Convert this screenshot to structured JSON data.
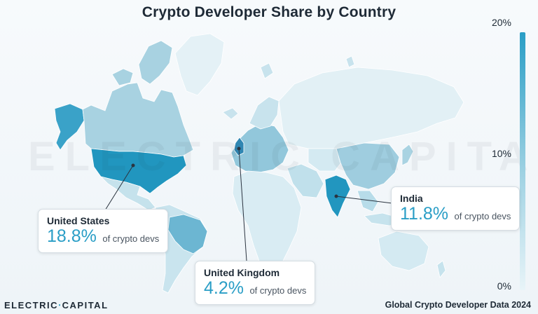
{
  "title": "Crypto Developer Share by Country",
  "legend": {
    "ticks": [
      "20%",
      "10%",
      "0%"
    ],
    "color_high": "#2a9ec6",
    "color_low": "#e8f4f8"
  },
  "watermark": "ELECTRIC CAPITAL",
  "callouts": [
    {
      "country": "United States",
      "value": "18.8%",
      "suffix": "of crypto devs"
    },
    {
      "country": "India",
      "value": "11.8%",
      "suffix": "of crypto devs"
    },
    {
      "country": "United Kingdom",
      "value": "4.2%",
      "suffix": "of crypto devs"
    }
  ],
  "footer": {
    "brand_left": "ELECTRIC",
    "brand_right": "CAPITAL",
    "source": "Global Crypto Developer Data 2024"
  }
}
